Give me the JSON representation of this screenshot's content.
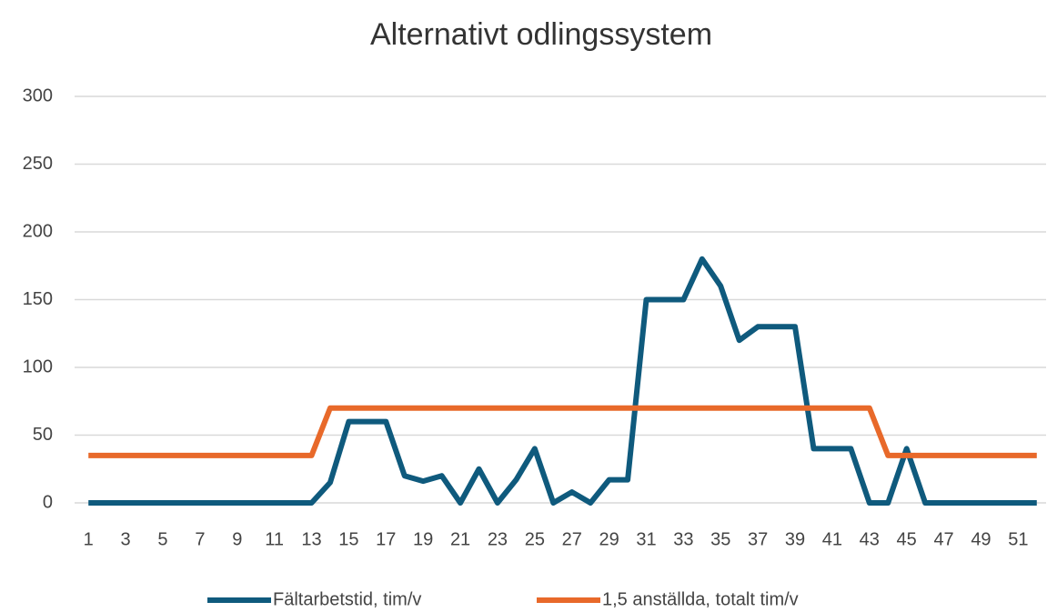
{
  "chart_data": {
    "type": "line",
    "title": "Alternativt odlingssystem",
    "categories": [
      1,
      null,
      3,
      null,
      5,
      null,
      7,
      null,
      9,
      null,
      11,
      null,
      13,
      null,
      15,
      null,
      17,
      null,
      19,
      null,
      21,
      null,
      23,
      null,
      25,
      null,
      27,
      null,
      29,
      null,
      31,
      null,
      33,
      null,
      35,
      null,
      37,
      null,
      39,
      null,
      41,
      null,
      43,
      null,
      45,
      null,
      47,
      null,
      49,
      null,
      51,
      null
    ],
    "series": [
      {
        "name": "Fältarbetstid,  tim/v",
        "color": "#0f5a7d",
        "values": [
          0,
          0,
          0,
          0,
          0,
          0,
          0,
          0,
          0,
          0,
          0,
          0,
          0,
          15,
          60,
          60,
          60,
          20,
          16,
          20,
          0,
          25,
          0,
          17,
          40,
          0,
          8,
          0,
          17,
          17,
          150,
          150,
          150,
          180,
          160,
          120,
          130,
          130,
          130,
          40,
          40,
          40,
          0,
          0,
          40,
          0,
          0,
          0,
          0,
          0,
          0,
          0
        ]
      },
      {
        "name": "1,5 anställda,  totalt tim/v",
        "color": "#e8692a",
        "values": [
          35,
          35,
          35,
          35,
          35,
          35,
          35,
          35,
          35,
          35,
          35,
          35,
          35,
          70,
          70,
          70,
          70,
          70,
          70,
          70,
          70,
          70,
          70,
          70,
          70,
          70,
          70,
          70,
          70,
          70,
          70,
          70,
          70,
          70,
          70,
          70,
          70,
          70,
          70,
          70,
          70,
          70,
          70,
          35,
          35,
          35,
          35,
          35,
          35,
          35,
          35,
          35
        ]
      }
    ],
    "ylim": [
      0,
      300
    ],
    "yticks": [
      0,
      50,
      100,
      150,
      200,
      250,
      300
    ],
    "grid": true
  }
}
